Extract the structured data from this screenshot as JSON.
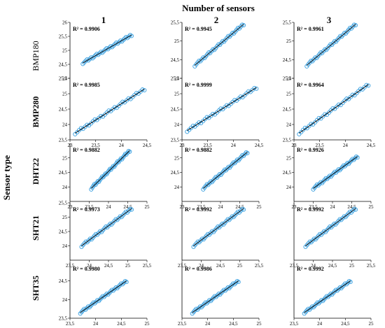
{
  "figure": {
    "title": "Number of sensors",
    "y_title": "Sensor type",
    "columns": [
      "1",
      "2",
      "3"
    ],
    "rows": [
      "BMP180",
      "BMP280",
      "DHT22",
      "SHT21",
      "SHT35"
    ],
    "colors": {
      "points": "#3aa0e0",
      "fit_line": "#000000",
      "axis": "#000000"
    }
  },
  "chart_data": [
    {
      "type": "scatter",
      "row": "BMP180",
      "col": "1",
      "annotation": "R² = 0.9906",
      "xlim": [
        null,
        null
      ],
      "ylim": [
        24,
        26
      ],
      "yticks": [
        "24",
        "24,5",
        "25",
        "25,5",
        "26"
      ],
      "xticks": [],
      "points_x": [
        23.5,
        24.45
      ],
      "points_y": [
        24.55,
        25.55
      ]
    },
    {
      "type": "scatter",
      "row": "BMP180",
      "col": "2",
      "annotation": "R² = 0.9945",
      "xlim": [
        null,
        null
      ],
      "ylim": [
        24,
        25.5
      ],
      "yticks": [
        "24",
        "24,5",
        "25",
        "25,5"
      ],
      "xticks": [],
      "points_x": [
        23.5,
        24.45
      ],
      "points_y": [
        24.35,
        25.45
      ]
    },
    {
      "type": "scatter",
      "row": "BMP180",
      "col": "3",
      "annotation": "R² = 0.9961",
      "xlim": [
        null,
        null
      ],
      "ylim": [
        24,
        25.5
      ],
      "yticks": [
        "24",
        "24,5",
        "25",
        "25,5"
      ],
      "xticks": [],
      "points_x": [
        23.5,
        24.45
      ],
      "points_y": [
        24.35,
        25.45
      ]
    },
    {
      "type": "scatter",
      "row": "BMP280",
      "col": "1",
      "annotation": "R² = 0.9985",
      "xlim": [
        23,
        24.5
      ],
      "ylim": [
        23.5,
        25.5
      ],
      "yticks": [
        "23,5",
        "24",
        "24,5",
        "25",
        "25,5"
      ],
      "xticks": [
        "23",
        "23,5",
        "24",
        "24,5"
      ],
      "points_x": [
        23.1,
        24.45
      ],
      "points_y": [
        23.72,
        25.15
      ]
    },
    {
      "type": "scatter",
      "row": "BMP280",
      "col": "2",
      "annotation": "R² = 0.9999",
      "xlim": [
        23,
        24.5
      ],
      "ylim": [
        23.5,
        25.5
      ],
      "yticks": [
        "23,5",
        "24",
        "24,5",
        "25",
        "25,5"
      ],
      "xticks": [
        "23",
        "23,5",
        "24",
        "24,5"
      ],
      "points_x": [
        23.1,
        24.45
      ],
      "points_y": [
        23.8,
        25.2
      ]
    },
    {
      "type": "scatter",
      "row": "BMP280",
      "col": "3",
      "annotation": "R² = 0.9964",
      "xlim": [
        23,
        24.5
      ],
      "ylim": [
        23.5,
        25.5
      ],
      "yticks": [
        "23,5",
        "24",
        "24,5",
        "25",
        "25,5"
      ],
      "xticks": [
        "23",
        "23,5",
        "24",
        "24,5"
      ],
      "points_x": [
        23.1,
        24.45
      ],
      "points_y": [
        23.72,
        25.3
      ]
    },
    {
      "type": "scatter",
      "row": "DHT22",
      "col": "1",
      "annotation": "R² = 0.9882",
      "xlim": [
        23,
        25
      ],
      "ylim": [
        23.5,
        25.5
      ],
      "yticks": [
        "24",
        "24,5",
        "25"
      ],
      "xticks": [
        "23",
        "23,5",
        "24",
        "24,5",
        "25"
      ],
      "points_x": [
        23.55,
        24.55
      ],
      "points_y": [
        23.95,
        25.25
      ]
    },
    {
      "type": "scatter",
      "row": "DHT22",
      "col": "2",
      "annotation": "R² = 0.9882",
      "xlim": [
        23,
        25
      ],
      "ylim": [
        23.5,
        25.5
      ],
      "yticks": [
        "24",
        "24,5",
        "25"
      ],
      "xticks": [
        "23",
        "23,5",
        "24",
        "24,5",
        "25"
      ],
      "points_x": [
        23.55,
        24.7
      ],
      "points_y": [
        23.95,
        25.2
      ]
    },
    {
      "type": "scatter",
      "row": "DHT22",
      "col": "3",
      "annotation": "R² = 0.9926",
      "xlim": [
        23,
        25
      ],
      "ylim": [
        23.5,
        25.5
      ],
      "yticks": [
        "24",
        "24,5",
        "25"
      ],
      "xticks": [
        "23",
        "23,5",
        "24",
        "24,5",
        "25"
      ],
      "points_x": [
        23.5,
        24.65
      ],
      "points_y": [
        23.95,
        25.05
      ]
    },
    {
      "type": "scatter",
      "row": "SHT21",
      "col": "1",
      "annotation": "R² = 0.9973",
      "xlim": [
        23.5,
        25.5
      ],
      "ylim": [
        23.5,
        25.5
      ],
      "yticks": [
        "24",
        "24,5",
        "25",
        "25,5"
      ],
      "xticks": [
        "23,5",
        "24",
        "24,5",
        "25",
        "25,5"
      ],
      "points_x": [
        23.8,
        25.1
      ],
      "points_y": [
        24.0,
        25.3
      ]
    },
    {
      "type": "scatter",
      "row": "SHT21",
      "col": "2",
      "annotation": "R² = 0.9992",
      "xlim": [
        23.5,
        25.5
      ],
      "ylim": [
        23.5,
        25.5
      ],
      "yticks": [],
      "xticks": [
        "23,5",
        "24",
        "24,5",
        "25",
        "25,5"
      ],
      "points_x": [
        23.8,
        25.1
      ],
      "points_y": [
        24.0,
        25.3
      ]
    },
    {
      "type": "scatter",
      "row": "SHT21",
      "col": "3",
      "annotation": "R² = 0.9992",
      "xlim": [
        23.5,
        25.5
      ],
      "ylim": [
        23.5,
        25.5
      ],
      "yticks": [],
      "xticks": [
        "23,5",
        "24",
        "24,5",
        "25",
        "25,5"
      ],
      "points_x": [
        23.8,
        25.1
      ],
      "points_y": [
        24.0,
        25.3
      ]
    },
    {
      "type": "scatter",
      "row": "SHT35",
      "col": "1",
      "annotation": "R² = 0.9980",
      "xlim": [
        23.5,
        25
      ],
      "ylim": [
        23.5,
        25
      ],
      "yticks": [
        "23,5",
        "24",
        "24,5"
      ],
      "xticks": [
        "23,5",
        "24",
        "24,5",
        "25"
      ],
      "points_x": [
        23.7,
        24.6
      ],
      "points_y": [
        23.65,
        24.5
      ]
    },
    {
      "type": "scatter",
      "row": "SHT35",
      "col": "2",
      "annotation": "R² = 0.9986",
      "xlim": [
        23.5,
        25
      ],
      "ylim": [
        23.5,
        25
      ],
      "yticks": [],
      "xticks": [
        "23,5",
        "24",
        "24,5",
        "25"
      ],
      "points_x": [
        23.7,
        24.6
      ],
      "points_y": [
        23.65,
        24.5
      ]
    },
    {
      "type": "scatter",
      "row": "SHT35",
      "col": "3",
      "annotation": "R² = 0.9992",
      "xlim": [
        23.5,
        25
      ],
      "ylim": [
        23.5,
        25
      ],
      "yticks": [],
      "xticks": [
        "23,5",
        "24",
        "24,5",
        "25"
      ],
      "points_x": [
        23.7,
        24.6
      ],
      "points_y": [
        23.65,
        24.5
      ]
    }
  ]
}
